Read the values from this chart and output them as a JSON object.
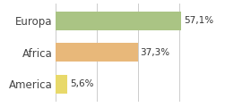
{
  "categories": [
    "Europa",
    "Africa",
    "America"
  ],
  "values": [
    57.1,
    37.3,
    5.6
  ],
  "labels": [
    "57,1%",
    "37,3%",
    "5,6%"
  ],
  "bar_colors": [
    "#aac484",
    "#e8b87a",
    "#e8d96a"
  ],
  "background_color": "#ffffff",
  "xlim": [
    0,
    75
  ],
  "bar_height": 0.6,
  "label_fontsize": 7.5,
  "tick_fontsize": 8.5,
  "grid_color": "#cccccc",
  "grid_xticks": [
    0,
    18.75,
    37.5,
    56.25,
    75
  ]
}
